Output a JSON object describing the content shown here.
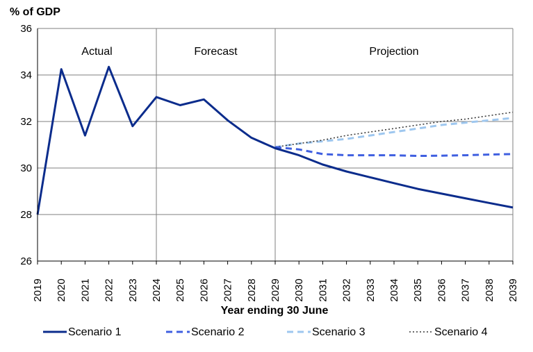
{
  "chart_data": {
    "type": "line",
    "ylabel": "% of GDP",
    "xlabel": "Year ending 30 June",
    "ylim": [
      26,
      36
    ],
    "yticks": [
      26,
      28,
      30,
      32,
      34,
      36
    ],
    "grid": true,
    "regions": [
      {
        "label": "Actual",
        "start": 2019,
        "end": 2024
      },
      {
        "label": "Forecast",
        "start": 2024,
        "end": 2029
      },
      {
        "label": "Projection",
        "start": 2029,
        "end": 2039
      }
    ],
    "categories": [
      "2019",
      "2020",
      "2021",
      "2022",
      "2023",
      "2024",
      "2025",
      "2026",
      "2027",
      "2028",
      "2029",
      "2030",
      "2031",
      "2032",
      "2033",
      "2034",
      "2035",
      "2036",
      "2037",
      "2038",
      "2039"
    ],
    "series": [
      {
        "name": "Scenario 1",
        "style": "solid",
        "color": "#0b2c8c",
        "x": [
          2019,
          2020,
          2021,
          2022,
          2023,
          2024,
          2025,
          2026,
          2027,
          2028,
          2029,
          2030,
          2031,
          2032,
          2033,
          2034,
          2035,
          2036,
          2037,
          2038,
          2039
        ],
        "values": [
          28.0,
          34.25,
          31.4,
          34.35,
          31.8,
          33.05,
          32.7,
          32.95,
          32.05,
          31.3,
          30.85,
          30.55,
          30.15,
          29.85,
          29.6,
          29.35,
          29.1,
          28.9,
          28.7,
          28.5,
          28.3
        ]
      },
      {
        "name": "Scenario 2",
        "style": "dashed",
        "color": "#3f5fe0",
        "x": [
          2029,
          2030,
          2031,
          2032,
          2033,
          2034,
          2035,
          2036,
          2037,
          2038,
          2039
        ],
        "values": [
          30.9,
          30.8,
          30.6,
          30.55,
          30.55,
          30.55,
          30.52,
          30.53,
          30.55,
          30.58,
          30.6
        ]
      },
      {
        "name": "Scenario 3",
        "style": "dashed",
        "color": "#9ec7ef",
        "x": [
          2029,
          2030,
          2031,
          2032,
          2033,
          2034,
          2035,
          2036,
          2037,
          2038,
          2039
        ],
        "values": [
          30.9,
          31.05,
          31.15,
          31.25,
          31.4,
          31.55,
          31.7,
          31.85,
          31.95,
          32.05,
          32.15
        ]
      },
      {
        "name": "Scenario 4",
        "style": "dotted",
        "color": "#3a3a3a",
        "x": [
          2029,
          2030,
          2031,
          2032,
          2033,
          2034,
          2035,
          2036,
          2037,
          2038,
          2039
        ],
        "values": [
          30.9,
          31.05,
          31.2,
          31.4,
          31.55,
          31.7,
          31.85,
          32.0,
          32.1,
          32.25,
          32.4
        ]
      }
    ]
  }
}
